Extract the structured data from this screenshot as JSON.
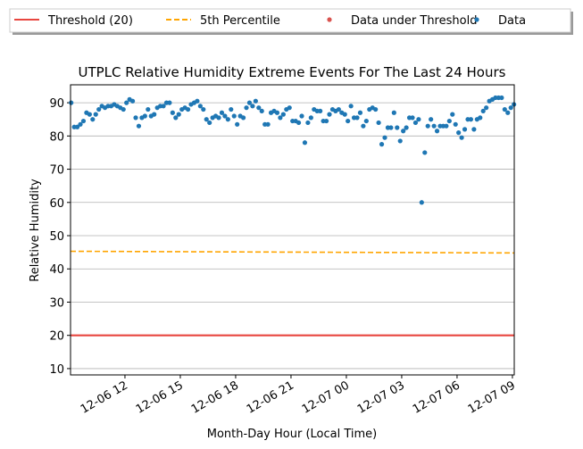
{
  "chart_data": {
    "type": "scatter",
    "title": "UTPLC Relative Humidity Extreme Events For The Last 24 Hours",
    "xlabel": "Month-Day Hour (Local Time)",
    "ylabel": "Relative Humidity",
    "xlim": [
      "12-06 09:03",
      "12-07 09:06"
    ],
    "ylim": [
      8.1,
      95.4
    ],
    "yticks": [
      10,
      20,
      30,
      40,
      50,
      60,
      70,
      80,
      90
    ],
    "xticks": [
      {
        "value": "12-06 12:00",
        "label": "12-06 12"
      },
      {
        "value": "12-06 15:00",
        "label": "12-06 15"
      },
      {
        "value": "12-06 18:00",
        "label": "12-06 18"
      },
      {
        "value": "12-06 21:00",
        "label": "12-06 21"
      },
      {
        "value": "12-07 00:00",
        "label": "12-07 00"
      },
      {
        "value": "12-07 03:00",
        "label": "12-07 03"
      },
      {
        "value": "12-07 06:00",
        "label": "12-07 06"
      },
      {
        "value": "12-07 09:00",
        "label": "12-07 09"
      }
    ],
    "grid": true,
    "lines": [
      {
        "name": "Threshold (20)",
        "color": "#e8463f",
        "dashed": false,
        "x": [
          "12-06 09:03",
          "12-07 09:06"
        ],
        "values": [
          20,
          20
        ]
      },
      {
        "name": "5th Percentile",
        "color": "#ffa500",
        "dashed": true,
        "x": [
          "12-06 09:03",
          "12-07 09:06"
        ],
        "values": [
          45.3,
          44.8
        ]
      }
    ],
    "series": [
      {
        "name": "Data under Threshold",
        "color": "#d9534f",
        "x": [],
        "values": []
      },
      {
        "name": "Data",
        "color": "#1f77b4",
        "x": [
          "12-06 09:05",
          "12-06 09:15",
          "12-06 09:25",
          "12-06 09:35",
          "12-06 09:45",
          "12-06 09:55",
          "12-06 10:05",
          "12-06 10:15",
          "12-06 10:25",
          "12-06 10:35",
          "12-06 10:45",
          "12-06 10:55",
          "12-06 11:05",
          "12-06 11:15",
          "12-06 11:25",
          "12-06 11:35",
          "12-06 11:45",
          "12-06 11:55",
          "12-06 12:05",
          "12-06 12:15",
          "12-06 12:25",
          "12-06 12:35",
          "12-06 12:45",
          "12-06 12:55",
          "12-06 13:05",
          "12-06 13:15",
          "12-06 13:25",
          "12-06 13:35",
          "12-06 13:45",
          "12-06 13:55",
          "12-06 14:05",
          "12-06 14:15",
          "12-06 14:25",
          "12-06 14:35",
          "12-06 14:45",
          "12-06 14:55",
          "12-06 15:05",
          "12-06 15:15",
          "12-06 15:25",
          "12-06 15:35",
          "12-06 15:45",
          "12-06 15:55",
          "12-06 16:05",
          "12-06 16:15",
          "12-06 16:25",
          "12-06 16:35",
          "12-06 16:45",
          "12-06 16:55",
          "12-06 17:05",
          "12-06 17:15",
          "12-06 17:25",
          "12-06 17:35",
          "12-06 17:45",
          "12-06 17:55",
          "12-06 18:05",
          "12-06 18:15",
          "12-06 18:25",
          "12-06 18:35",
          "12-06 18:45",
          "12-06 18:55",
          "12-06 19:05",
          "12-06 19:15",
          "12-06 19:25",
          "12-06 19:35",
          "12-06 19:45",
          "12-06 19:55",
          "12-06 20:05",
          "12-06 20:15",
          "12-06 20:25",
          "12-06 20:35",
          "12-06 20:45",
          "12-06 20:55",
          "12-06 21:05",
          "12-06 21:15",
          "12-06 21:25",
          "12-06 21:35",
          "12-06 21:45",
          "12-06 21:55",
          "12-06 22:05",
          "12-06 22:15",
          "12-06 22:25",
          "12-06 22:35",
          "12-06 22:45",
          "12-06 22:55",
          "12-06 23:05",
          "12-06 23:15",
          "12-06 23:25",
          "12-06 23:35",
          "12-06 23:45",
          "12-06 23:55",
          "12-07 00:05",
          "12-07 00:15",
          "12-07 00:25",
          "12-07 00:35",
          "12-07 00:45",
          "12-07 00:55",
          "12-07 01:05",
          "12-07 01:15",
          "12-07 01:25",
          "12-07 01:35",
          "12-07 01:45",
          "12-07 01:55",
          "12-07 02:05",
          "12-07 02:15",
          "12-07 02:25",
          "12-07 02:35",
          "12-07 02:45",
          "12-07 02:55",
          "12-07 03:05",
          "12-07 03:15",
          "12-07 03:25",
          "12-07 03:35",
          "12-07 03:45",
          "12-07 03:55",
          "12-07 04:05",
          "12-07 04:15",
          "12-07 04:25",
          "12-07 04:35",
          "12-07 04:45",
          "12-07 04:55",
          "12-07 05:05",
          "12-07 05:15",
          "12-07 05:25",
          "12-07 05:35",
          "12-07 05:45",
          "12-07 05:55",
          "12-07 06:05",
          "12-07 06:15",
          "12-07 06:25",
          "12-07 06:35",
          "12-07 06:45",
          "12-07 06:55",
          "12-07 07:05",
          "12-07 07:15",
          "12-07 07:25",
          "12-07 07:35",
          "12-07 07:45",
          "12-07 07:55",
          "12-07 08:05",
          "12-07 08:15",
          "12-07 08:25",
          "12-07 08:35",
          "12-07 08:45",
          "12-07 08:55",
          "12-07 09:05"
        ],
        "values": [
          90,
          82.7,
          82.7,
          83.5,
          84.5,
          87,
          86.5,
          85,
          86.5,
          88,
          89,
          88.5,
          89,
          89,
          89.5,
          89,
          88.5,
          88,
          90,
          91,
          90.5,
          85.5,
          83,
          85.5,
          86,
          88,
          86,
          86.5,
          88.5,
          89,
          89,
          90,
          90,
          87,
          85.5,
          86.5,
          88,
          88.5,
          88,
          89.5,
          90,
          90.5,
          89,
          88,
          85,
          84,
          85.5,
          86,
          85.5,
          87,
          86,
          85,
          88,
          86,
          83.5,
          86,
          85.5,
          88.5,
          90,
          89,
          90.5,
          88.5,
          87.5,
          83.5,
          83.5,
          87,
          87.5,
          87,
          85.5,
          86.5,
          88,
          88.5,
          84.5,
          84.5,
          84,
          86,
          78,
          84,
          85.5,
          88,
          87.5,
          87.5,
          84.5,
          84.5,
          86.5,
          88,
          87.5,
          88,
          87,
          86.5,
          84.5,
          89,
          85.5,
          85.5,
          87,
          83,
          84.5,
          88,
          88.5,
          88,
          84,
          77.5,
          79.5,
          82.5,
          82.5,
          87,
          82.5,
          78.5,
          81.5,
          82.5,
          85.5,
          85.5,
          84,
          85,
          60,
          75,
          83,
          85,
          83,
          81.5,
          83,
          83,
          83,
          84.5,
          86.5,
          83.5,
          81,
          79.5,
          82,
          85,
          85,
          82,
          85,
          85.5,
          87.5,
          88.5,
          90.5,
          91,
          91.5,
          91.5,
          91.5,
          88,
          87,
          88.5,
          89.5
        ]
      }
    ]
  }
}
